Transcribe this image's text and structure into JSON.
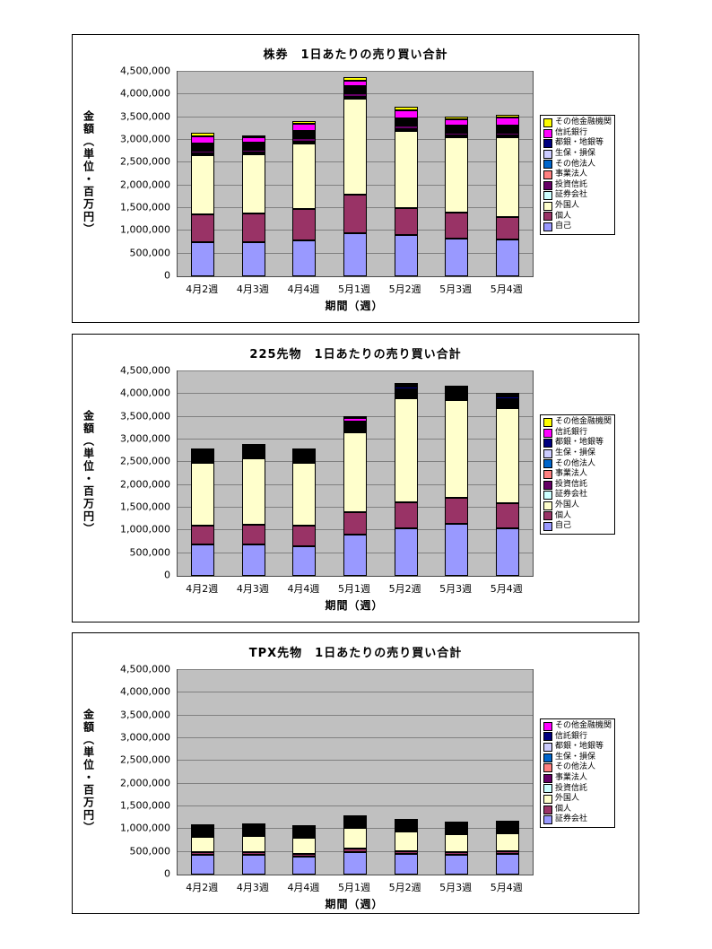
{
  "page": {
    "background": "#FFFFFF",
    "plot_background": "#C0C0C0",
    "gridline_color": "#808080"
  },
  "chart_data": [
    {
      "type": "bar",
      "stacked": true,
      "title": "株券　1日あたりの売り買い合計",
      "xlabel": "期間（週）",
      "ylabel": "金額（単位・百万円）",
      "ylim": [
        0,
        4500000
      ],
      "ytick_interval": 500000,
      "grid": "horizontal",
      "legend_position": "right",
      "categories": [
        "4月2週",
        "4月3週",
        "4月4週",
        "5月1週",
        "5月2週",
        "5月3週",
        "5月4週"
      ],
      "series": [
        {
          "name": "自己",
          "color": "#9999FF",
          "values": [
            750000,
            760000,
            780000,
            950000,
            900000,
            830000,
            800000
          ]
        },
        {
          "name": "個人",
          "color": "#993366",
          "values": [
            620000,
            620000,
            700000,
            850000,
            600000,
            570000,
            500000
          ]
        },
        {
          "name": "外国人",
          "color": "#FFFFCC",
          "values": [
            1300000,
            1300000,
            1450000,
            2100000,
            1700000,
            1650000,
            1750000
          ]
        },
        {
          "name": "証券会社",
          "color": "#CCFFFF",
          "values": [
            30000,
            30000,
            30000,
            40000,
            40000,
            30000,
            30000
          ]
        },
        {
          "name": "投資信託",
          "color": "#660066",
          "values": [
            60000,
            60000,
            70000,
            80000,
            70000,
            60000,
            60000
          ]
        },
        {
          "name": "事業法人",
          "color": "#FF8080",
          "values": [
            40000,
            40000,
            40000,
            50000,
            50000,
            40000,
            40000
          ]
        },
        {
          "name": "その他法人",
          "color": "#0066CC",
          "values": [
            20000,
            20000,
            20000,
            30000,
            30000,
            20000,
            20000
          ]
        },
        {
          "name": "生保・損保",
          "color": "#CCCCFF",
          "values": [
            20000,
            20000,
            20000,
            20000,
            20000,
            20000,
            20000
          ]
        },
        {
          "name": "都銀・地銀等",
          "color": "#000080",
          "values": [
            30000,
            30000,
            30000,
            40000,
            40000,
            30000,
            30000
          ]
        },
        {
          "name": "信託銀行",
          "color": "#FF00FF",
          "values": [
            150000,
            120000,
            150000,
            120000,
            180000,
            150000,
            180000
          ]
        },
        {
          "name": "その他金融機関",
          "color": "#FFFF00",
          "values": [
            80000,
            50000,
            60000,
            70000,
            70000,
            50000,
            70000
          ]
        }
      ]
    },
    {
      "type": "bar",
      "stacked": true,
      "title": "225先物　1日あたりの売り買い合計",
      "xlabel": "期間（週）",
      "ylabel": "金額（単位・百万円）",
      "ylim": [
        0,
        4500000
      ],
      "ytick_interval": 500000,
      "grid": "horizontal",
      "legend_position": "right",
      "categories": [
        "4月2週",
        "4月3週",
        "4月4週",
        "5月1週",
        "5月2週",
        "5月3週",
        "5月4週"
      ],
      "series": [
        {
          "name": "自己",
          "color": "#9999FF",
          "values": [
            700000,
            700000,
            650000,
            900000,
            1050000,
            1150000,
            1050000
          ]
        },
        {
          "name": "個人",
          "color": "#993366",
          "values": [
            400000,
            430000,
            450000,
            500000,
            560000,
            560000,
            550000
          ]
        },
        {
          "name": "外国人",
          "color": "#FFFFCC",
          "values": [
            1380000,
            1450000,
            1380000,
            1750000,
            2300000,
            2150000,
            2100000
          ]
        },
        {
          "name": "証券会社",
          "color": "#CCFFFF",
          "values": [
            20000,
            20000,
            20000,
            30000,
            30000,
            30000,
            30000
          ]
        },
        {
          "name": "投資信託",
          "color": "#660066",
          "values": [
            20000,
            20000,
            20000,
            30000,
            30000,
            20000,
            20000
          ]
        },
        {
          "name": "事業法人",
          "color": "#FF8080",
          "values": [
            10000,
            10000,
            10000,
            20000,
            20000,
            10000,
            10000
          ]
        },
        {
          "name": "その他法人",
          "color": "#0066CC",
          "values": [
            10000,
            10000,
            10000,
            20000,
            20000,
            10000,
            10000
          ]
        },
        {
          "name": "生保・損保",
          "color": "#CCCCFF",
          "values": [
            10000,
            10000,
            10000,
            10000,
            10000,
            10000,
            10000
          ]
        },
        {
          "name": "都銀・地銀等",
          "color": "#000080",
          "values": [
            40000,
            40000,
            30000,
            50000,
            60000,
            40000,
            50000
          ]
        },
        {
          "name": "信託銀行",
          "color": "#FF00FF",
          "values": [
            50000,
            40000,
            30000,
            80000,
            40000,
            30000,
            40000
          ]
        },
        {
          "name": "その他金融機関",
          "color": "#FFFF00",
          "values": [
            10000,
            10000,
            10000,
            30000,
            10000,
            10000,
            10000
          ]
        }
      ]
    },
    {
      "type": "bar",
      "stacked": true,
      "title": "TPX先物　1日あたりの売り買い合計",
      "xlabel": "期間（週）",
      "ylabel": "金額（単位・百万円）",
      "ylim": [
        0,
        4500000
      ],
      "ytick_interval": 500000,
      "grid": "horizontal",
      "legend_position": "right",
      "categories": [
        "4月2週",
        "4月3週",
        "4月4週",
        "5月1週",
        "5月2週",
        "5月3週",
        "5月4週"
      ],
      "series": [
        {
          "name": "証券会社",
          "color": "#9999FF",
          "values": [
            430000,
            430000,
            400000,
            500000,
            450000,
            430000,
            450000
          ]
        },
        {
          "name": "個人",
          "color": "#993366",
          "values": [
            60000,
            60000,
            60000,
            80000,
            70000,
            60000,
            60000
          ]
        },
        {
          "name": "外国人",
          "color": "#FFFFCC",
          "values": [
            330000,
            350000,
            340000,
            450000,
            420000,
            390000,
            400000
          ]
        },
        {
          "name": "投資信託",
          "color": "#CCFFFF",
          "values": [
            10000,
            10000,
            10000,
            20000,
            20000,
            10000,
            10000
          ]
        },
        {
          "name": "事業法人",
          "color": "#660066",
          "values": [
            10000,
            10000,
            10000,
            10000,
            10000,
            10000,
            10000
          ]
        },
        {
          "name": "その他法人",
          "color": "#FF8080",
          "values": [
            10000,
            10000,
            10000,
            10000,
            10000,
            10000,
            10000
          ]
        },
        {
          "name": "生保・損保",
          "color": "#0066CC",
          "values": [
            10000,
            10000,
            10000,
            10000,
            10000,
            10000,
            10000
          ]
        },
        {
          "name": "都銀・地銀等",
          "color": "#CCCCFF",
          "values": [
            20000,
            20000,
            20000,
            30000,
            30000,
            20000,
            30000
          ]
        },
        {
          "name": "信託銀行",
          "color": "#000080",
          "values": [
            30000,
            30000,
            30000,
            40000,
            40000,
            30000,
            40000
          ]
        },
        {
          "name": "その他金融機関",
          "color": "#FF00FF",
          "values": [
            10000,
            10000,
            10000,
            10000,
            10000,
            10000,
            10000
          ]
        }
      ]
    }
  ]
}
